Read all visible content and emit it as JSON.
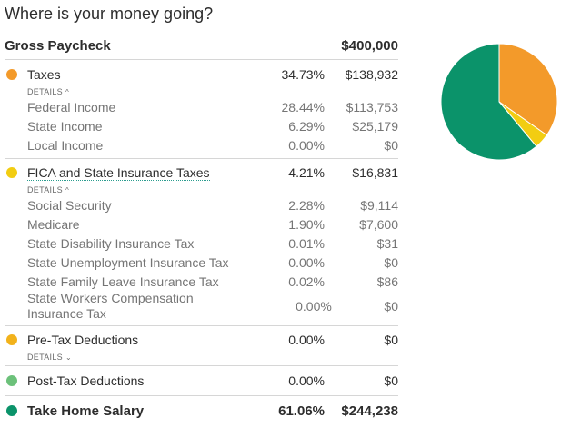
{
  "title": "Where is your money going?",
  "gross": {
    "label": "Gross Paycheck",
    "amount": "$400,000"
  },
  "taxes": {
    "label": "Taxes",
    "pct": "34.73%",
    "amount": "$138,932",
    "details_label": "DETAILS",
    "details_state": "expanded",
    "items": [
      {
        "label": "Federal Income",
        "pct": "28.44%",
        "amount": "$113,753"
      },
      {
        "label": "State Income",
        "pct": "6.29%",
        "amount": "$25,179"
      },
      {
        "label": "Local Income",
        "pct": "0.00%",
        "amount": "$0"
      }
    ]
  },
  "fica": {
    "label": "FICA and State Insurance Taxes",
    "pct": "4.21%",
    "amount": "$16,831",
    "details_label": "DETAILS",
    "details_state": "expanded",
    "items": [
      {
        "label": "Social Security",
        "pct": "2.28%",
        "amount": "$9,114"
      },
      {
        "label": "Medicare",
        "pct": "1.90%",
        "amount": "$7,600"
      },
      {
        "label": "State Disability Insurance Tax",
        "pct": "0.01%",
        "amount": "$31"
      },
      {
        "label": "State Unemployment Insurance Tax",
        "pct": "0.00%",
        "amount": "$0"
      },
      {
        "label": "State Family Leave Insurance Tax",
        "pct": "0.02%",
        "amount": "$86"
      },
      {
        "label": "State Workers Compensation Insurance Tax",
        "pct": "0.00%",
        "amount": "$0"
      }
    ]
  },
  "pretax": {
    "label": "Pre-Tax Deductions",
    "pct": "0.00%",
    "amount": "$0",
    "details_label": "DETAILS",
    "details_state": "collapsed"
  },
  "posttax": {
    "label": "Post-Tax Deductions",
    "pct": "0.00%",
    "amount": "$0"
  },
  "takehome": {
    "label": "Take Home Salary",
    "pct": "61.06%",
    "amount": "$244,238"
  },
  "colors": {
    "taxes": "#f39a2a",
    "fica": "#f2cd12",
    "pretax": "#f2b21b",
    "posttax": "#6cc17a",
    "takehome": "#0b936a"
  },
  "chart_data": {
    "type": "pie",
    "slices": [
      {
        "key": "taxes",
        "value": 34.73
      },
      {
        "key": "fica",
        "value": 4.21
      },
      {
        "key": "pretax",
        "value": 0.0
      },
      {
        "key": "posttax",
        "value": 0.0
      },
      {
        "key": "takehome",
        "value": 61.06
      }
    ]
  }
}
